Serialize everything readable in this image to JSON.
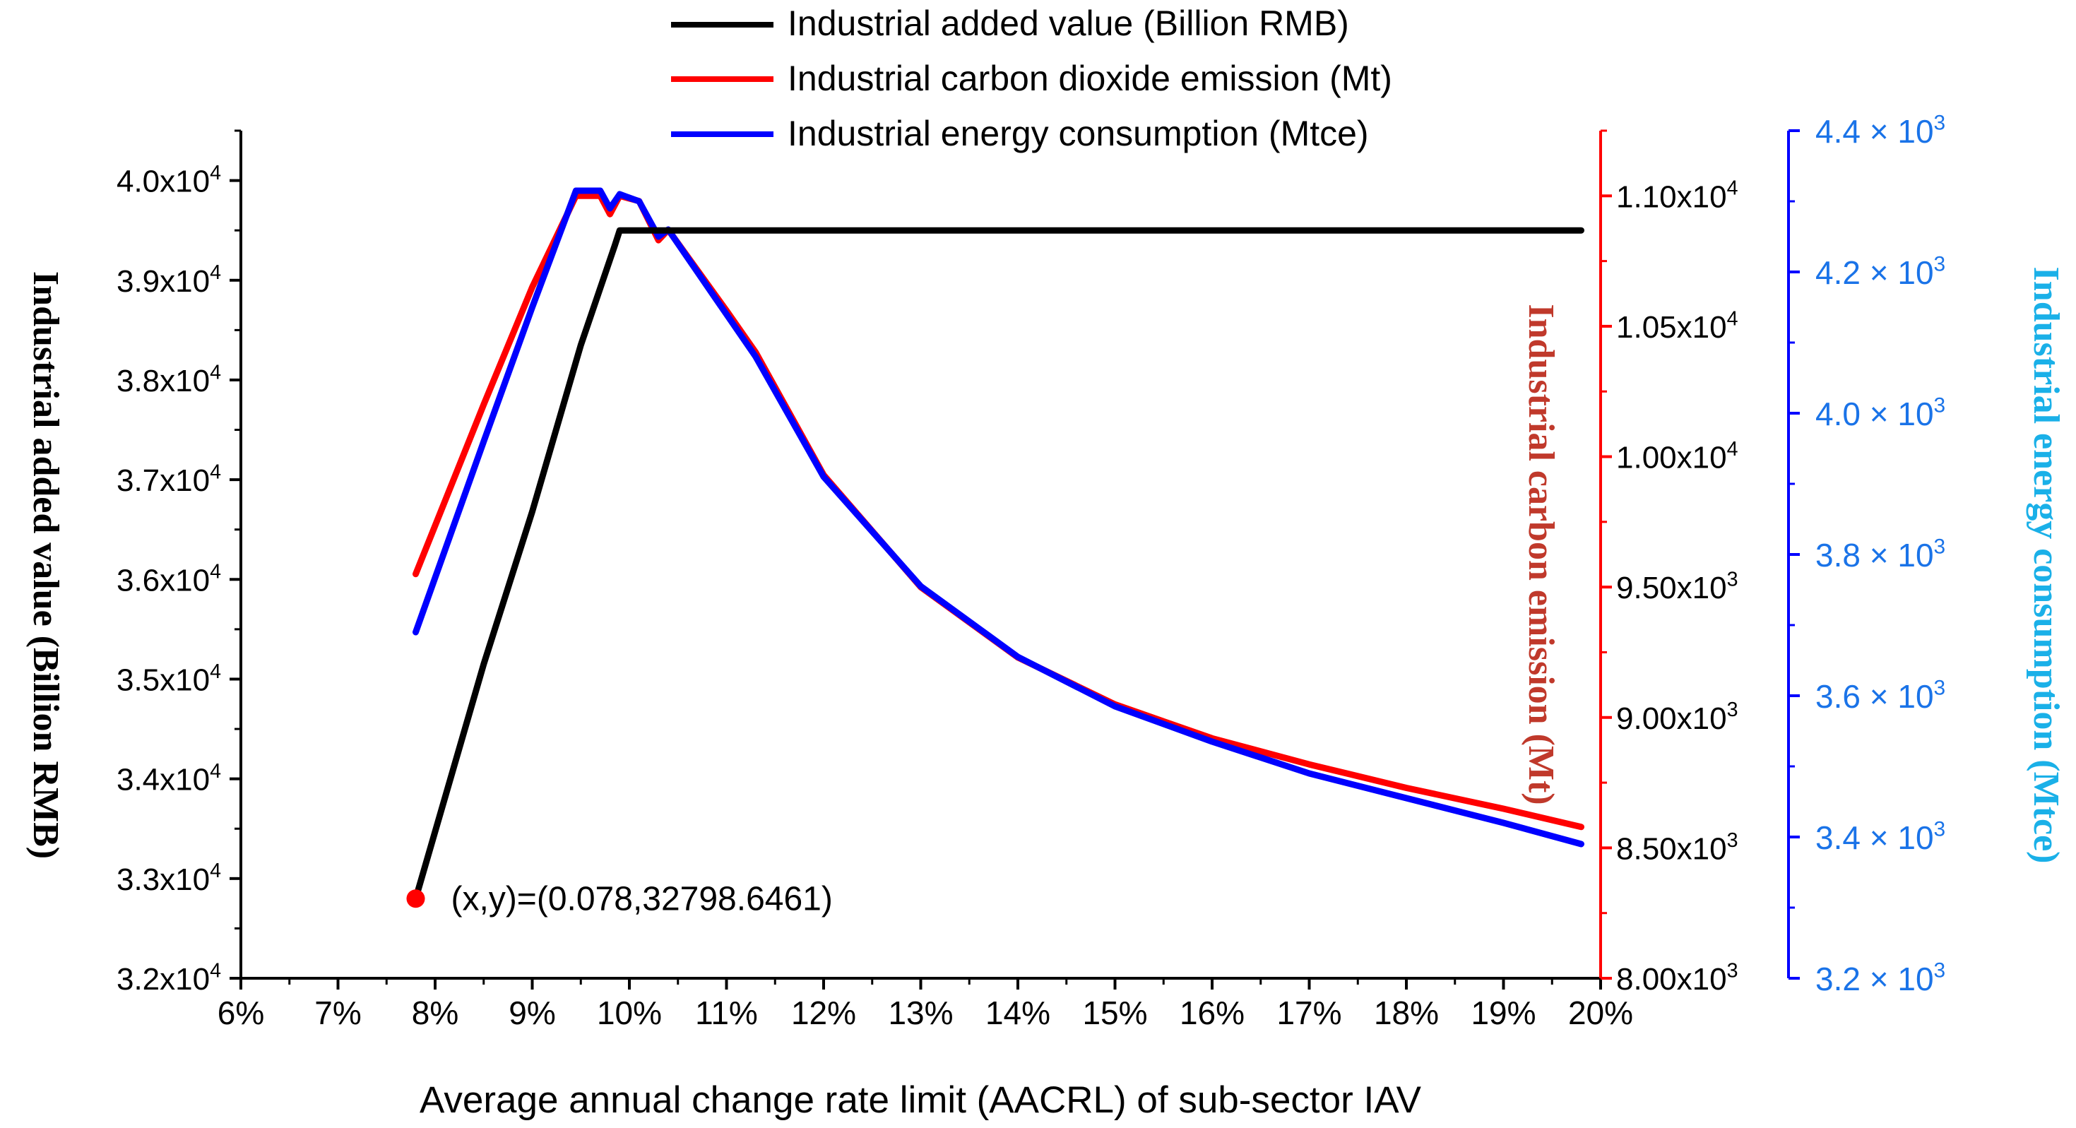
{
  "chart_data": {
    "type": "line",
    "xlabel": "Average annual change rate limit (AACRL) of sub-sector IAV",
    "x_ticks": [
      "6%",
      "7%",
      "8%",
      "9%",
      "10%",
      "11%",
      "12%",
      "13%",
      "14%",
      "15%",
      "16%",
      "17%",
      "18%",
      "19%",
      "20%"
    ],
    "xlim": [
      0.06,
      0.2
    ],
    "y_axes": {
      "left": {
        "label": "Industrial added value (Billion RMB)",
        "ylim": [
          32000,
          40500
        ],
        "ticks": [
          {
            "value": 32000,
            "mant": "3.2x10",
            "exp": "4"
          },
          {
            "value": 33000,
            "mant": "3.3x10",
            "exp": "4"
          },
          {
            "value": 34000,
            "mant": "3.4x10",
            "exp": "4"
          },
          {
            "value": 35000,
            "mant": "3.5x10",
            "exp": "4"
          },
          {
            "value": 36000,
            "mant": "3.6x10",
            "exp": "4"
          },
          {
            "value": 37000,
            "mant": "3.7x10",
            "exp": "4"
          },
          {
            "value": 38000,
            "mant": "3.8x10",
            "exp": "4"
          },
          {
            "value": 39000,
            "mant": "3.9x10",
            "exp": "4"
          },
          {
            "value": 40000,
            "mant": "4.0x10",
            "exp": "4"
          }
        ],
        "color": "#000000"
      },
      "right1": {
        "label": "Industrial carbon emission (Mt)",
        "ylim": [
          8000,
          11250
        ],
        "ticks": [
          {
            "value": 8000,
            "mant": "8.00x10",
            "exp": "3"
          },
          {
            "value": 8500,
            "mant": "8.50x10",
            "exp": "3"
          },
          {
            "value": 9000,
            "mant": "9.00x10",
            "exp": "3"
          },
          {
            "value": 9500,
            "mant": "9.50x10",
            "exp": "3"
          },
          {
            "value": 10000,
            "mant": "1.00x10",
            "exp": "4"
          },
          {
            "value": 10500,
            "mant": "1.05x10",
            "exp": "4"
          },
          {
            "value": 11000,
            "mant": "1.10x10",
            "exp": "4"
          }
        ],
        "color": "#ff0000",
        "label_color": "#c0392b"
      },
      "right2": {
        "label": "Industrial energy consumption (Mtce)",
        "ylim": [
          3200,
          4400
        ],
        "ticks": [
          {
            "value": 3200,
            "mant": "3.2 × 10",
            "exp": "3"
          },
          {
            "value": 3400,
            "mant": "3.4 × 10",
            "exp": "3"
          },
          {
            "value": 3600,
            "mant": "3.6 × 10",
            "exp": "3"
          },
          {
            "value": 3800,
            "mant": "3.8 × 10",
            "exp": "3"
          },
          {
            "value": 4000,
            "mant": "4.0 × 10",
            "exp": "3"
          },
          {
            "value": 4200,
            "mant": "4.2 × 10",
            "exp": "3"
          },
          {
            "value": 4400,
            "mant": "4.4 × 10",
            "exp": "3"
          }
        ],
        "color": "#0000ff",
        "tick_color": "#1a73e8",
        "label_color": "#1ab0e8"
      }
    },
    "series": [
      {
        "name": "Industrial added value (Billion RMB)",
        "axis": "left",
        "color": "#000000",
        "x": [
          0.078,
          0.085,
          0.09,
          0.095,
          0.0985,
          0.099,
          0.1,
          0.105,
          0.11,
          0.12,
          0.13,
          0.14,
          0.15,
          0.16,
          0.17,
          0.18,
          0.19,
          0.198
        ],
        "y": [
          32800,
          35150,
          36680,
          38350,
          39350,
          39500,
          39500,
          39500,
          39500,
          39500,
          39500,
          39500,
          39500,
          39500,
          39500,
          39500,
          39500,
          39500
        ]
      },
      {
        "name": "Industrial carbon dioxide emission (Mt)",
        "axis": "right1",
        "color": "#ff0000",
        "x": [
          0.078,
          0.085,
          0.09,
          0.0945,
          0.095,
          0.097,
          0.098,
          0.099,
          0.1,
          0.101,
          0.103,
          0.104,
          0.11,
          0.113,
          0.12,
          0.13,
          0.14,
          0.15,
          0.16,
          0.17,
          0.18,
          0.19,
          0.198
        ],
        "y": [
          9550,
          10200,
          10650,
          11000,
          11000,
          11000,
          10930,
          11000,
          10990,
          10980,
          10830,
          10870,
          10560,
          10400,
          9930,
          9500,
          9230,
          9050,
          8920,
          8820,
          8730,
          8650,
          8580
        ]
      },
      {
        "name": "Industrial energy consumption (Mtce)",
        "axis": "right2",
        "color": "#0000ff",
        "x": [
          0.078,
          0.085,
          0.09,
          0.0945,
          0.095,
          0.097,
          0.098,
          0.099,
          0.1,
          0.101,
          0.103,
          0.104,
          0.11,
          0.113,
          0.12,
          0.13,
          0.14,
          0.15,
          0.16,
          0.17,
          0.18,
          0.19,
          0.198
        ],
        "y": [
          3690,
          3960,
          4150,
          4315,
          4315,
          4315,
          4290,
          4310,
          4305,
          4300,
          4250,
          4260,
          4140,
          4080,
          3910,
          3755,
          3655,
          3585,
          3535,
          3490,
          3455,
          3420,
          3390
        ]
      }
    ],
    "annotations": [
      {
        "text": "(x,y)=(0.078,32798.6461)",
        "x": 0.078,
        "y": 32798.6461,
        "axis": "left",
        "marker_color": "#ff0000"
      }
    ]
  }
}
